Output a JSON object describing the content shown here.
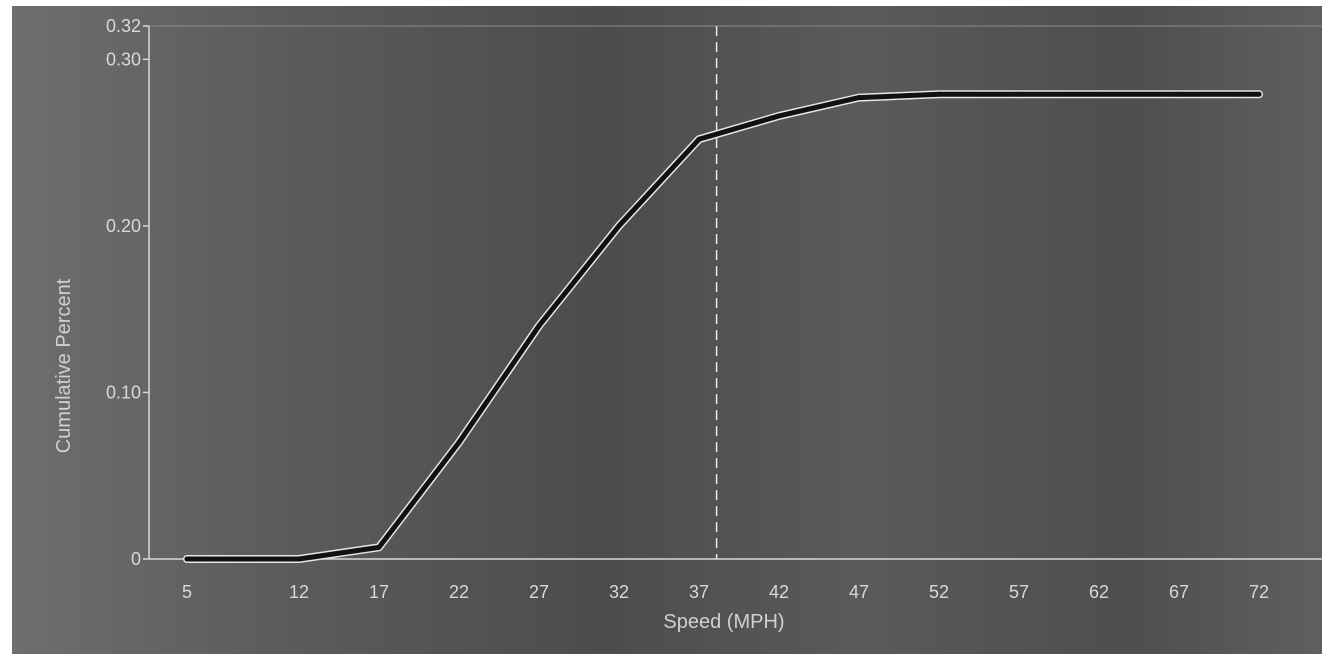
{
  "chart_data": {
    "type": "line",
    "title": "",
    "xlabel": "Speed (MPH)",
    "ylabel": "Cumulative Percent",
    "x": [
      5,
      12,
      17,
      22,
      27,
      32,
      37,
      42,
      47,
      52,
      57,
      62,
      67,
      72
    ],
    "x_tick_labels": [
      "5",
      "12",
      "17",
      "22",
      "27",
      "32",
      "37",
      "42",
      "47",
      "52",
      "57",
      "62",
      "67",
      "72"
    ],
    "y_ticks": [
      0,
      0.1,
      0.2,
      0.3,
      0.32
    ],
    "y_tick_labels": [
      "0",
      "0.10",
      "0.20",
      "0.30",
      "0.32"
    ],
    "ylim": [
      0,
      0.32
    ],
    "series": [
      {
        "values": [
          0,
          0,
          0.007,
          0.07,
          0.14,
          0.2,
          0.252,
          0.266,
          0.277,
          0.279,
          0.279,
          0.279,
          0.279,
          0.279
        ]
      }
    ],
    "reference_line": {
      "x": 38.1,
      "style": "dashed"
    },
    "grid": false,
    "colors": {
      "line": "#111111",
      "line_highlight": "#e6e6e6",
      "axis": "#d8d8d8",
      "background": "#555555"
    }
  }
}
